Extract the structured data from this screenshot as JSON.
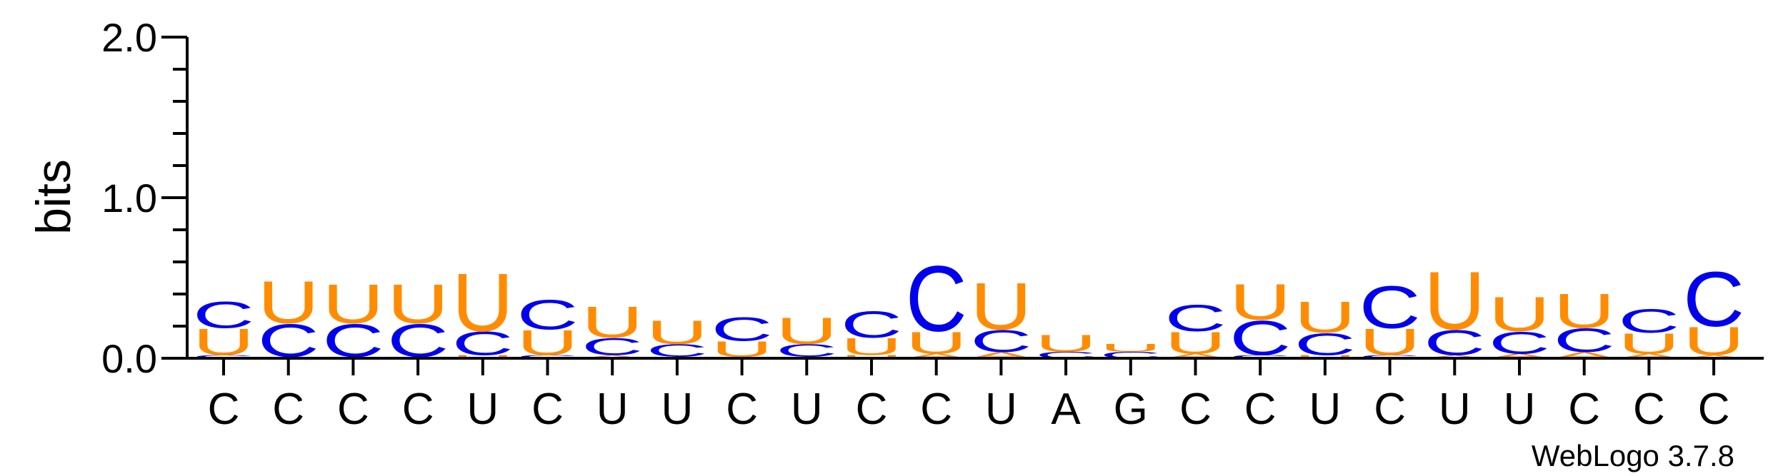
{
  "chart_data": {
    "type": "sequence-logo",
    "ylabel": "bits",
    "ylim": [
      0,
      2.0
    ],
    "yticks": [
      "0.0",
      "1.0",
      "2.0"
    ],
    "xtick_labels": [
      "C",
      "C",
      "C",
      "C",
      "U",
      "C",
      "U",
      "U",
      "C",
      "U",
      "C",
      "C",
      "U",
      "A",
      "G",
      "C",
      "C",
      "U",
      "C",
      "U",
      "U",
      "C",
      "C",
      "C"
    ],
    "credit": "WebLogo 3.7.8",
    "colors": {
      "C": "#0000ee",
      "U": "#ff8c00",
      "A": "#ff8c00",
      "G": "#0000ee"
    },
    "positions": [
      {
        "stack": [
          {
            "letter": "C",
            "bits": 0.02
          },
          {
            "letter": "U",
            "bits": 0.17
          },
          {
            "letter": "C",
            "bits": 0.17
          }
        ]
      },
      {
        "stack": [
          {
            "letter": "C",
            "bits": 0.01
          },
          {
            "letter": "C",
            "bits": 0.21
          },
          {
            "letter": "U",
            "bits": 0.27
          }
        ]
      },
      {
        "stack": [
          {
            "letter": "C",
            "bits": 0.01
          },
          {
            "letter": "C",
            "bits": 0.21
          },
          {
            "letter": "U",
            "bits": 0.25
          }
        ]
      },
      {
        "stack": [
          {
            "letter": "U",
            "bits": 0.01
          },
          {
            "letter": "C",
            "bits": 0.21
          },
          {
            "letter": "U",
            "bits": 0.25
          }
        ]
      },
      {
        "stack": [
          {
            "letter": "U",
            "bits": 0.02
          },
          {
            "letter": "C",
            "bits": 0.15
          },
          {
            "letter": "U",
            "bits": 0.37
          }
        ]
      },
      {
        "stack": [
          {
            "letter": "C",
            "bits": 0.02
          },
          {
            "letter": "U",
            "bits": 0.16
          },
          {
            "letter": "C",
            "bits": 0.19
          }
        ]
      },
      {
        "stack": [
          {
            "letter": "A",
            "bits": 0.02
          },
          {
            "letter": "C",
            "bits": 0.11
          },
          {
            "letter": "U",
            "bits": 0.2
          }
        ]
      },
      {
        "stack": [
          {
            "letter": "U",
            "bits": 0.01
          },
          {
            "letter": "C",
            "bits": 0.08
          },
          {
            "letter": "U",
            "bits": 0.15
          }
        ]
      },
      {
        "stack": [
          {
            "letter": "U",
            "bits": 0.01
          },
          {
            "letter": "U",
            "bits": 0.1
          },
          {
            "letter": "C",
            "bits": 0.15
          }
        ]
      },
      {
        "stack": [
          {
            "letter": "U",
            "bits": 0.01
          },
          {
            "letter": "C",
            "bits": 0.08
          },
          {
            "letter": "U",
            "bits": 0.17
          }
        ]
      },
      {
        "stack": [
          {
            "letter": "U",
            "bits": 0.02
          },
          {
            "letter": "U",
            "bits": 0.11
          },
          {
            "letter": "C",
            "bits": 0.17
          }
        ]
      },
      {
        "stack": [
          {
            "letter": "A",
            "bits": 0.03
          },
          {
            "letter": "U",
            "bits": 0.14
          },
          {
            "letter": "C",
            "bits": 0.42
          }
        ]
      },
      {
        "stack": [
          {
            "letter": "A",
            "bits": 0.04
          },
          {
            "letter": "C",
            "bits": 0.14
          },
          {
            "letter": "U",
            "bits": 0.3
          }
        ]
      },
      {
        "stack": [
          {
            "letter": "C",
            "bits": 0.04
          },
          {
            "letter": "U",
            "bits": 0.11
          }
        ]
      },
      {
        "stack": [
          {
            "letter": "C",
            "bits": 0.04
          },
          {
            "letter": "U",
            "bits": 0.05
          }
        ]
      },
      {
        "stack": [
          {
            "letter": "A",
            "bits": 0.03
          },
          {
            "letter": "U",
            "bits": 0.14
          },
          {
            "letter": "C",
            "bits": 0.17
          }
        ]
      },
      {
        "stack": [
          {
            "letter": "C",
            "bits": 0.02
          },
          {
            "letter": "C",
            "bits": 0.22
          },
          {
            "letter": "U",
            "bits": 0.23
          }
        ]
      },
      {
        "stack": [
          {
            "letter": "U",
            "bits": 0.02
          },
          {
            "letter": "C",
            "bits": 0.14
          },
          {
            "letter": "U",
            "bits": 0.2
          }
        ]
      },
      {
        "stack": [
          {
            "letter": "C",
            "bits": 0.02
          },
          {
            "letter": "U",
            "bits": 0.17
          },
          {
            "letter": "C",
            "bits": 0.27
          }
        ]
      },
      {
        "stack": [
          {
            "letter": "A",
            "bits": 0.02
          },
          {
            "letter": "C",
            "bits": 0.16
          },
          {
            "letter": "U",
            "bits": 0.37
          }
        ]
      },
      {
        "stack": [
          {
            "letter": "A",
            "bits": 0.03
          },
          {
            "letter": "C",
            "bits": 0.14
          },
          {
            "letter": "U",
            "bits": 0.22
          }
        ]
      },
      {
        "stack": [
          {
            "letter": "A",
            "bits": 0.04
          },
          {
            "letter": "C",
            "bits": 0.15
          },
          {
            "letter": "U",
            "bits": 0.22
          }
        ]
      },
      {
        "stack": [
          {
            "letter": "A",
            "bits": 0.03
          },
          {
            "letter": "U",
            "bits": 0.13
          },
          {
            "letter": "C",
            "bits": 0.15
          }
        ]
      },
      {
        "stack": [
          {
            "letter": "A",
            "bits": 0.02
          },
          {
            "letter": "U",
            "bits": 0.18
          },
          {
            "letter": "C",
            "bits": 0.35
          }
        ]
      }
    ]
  }
}
